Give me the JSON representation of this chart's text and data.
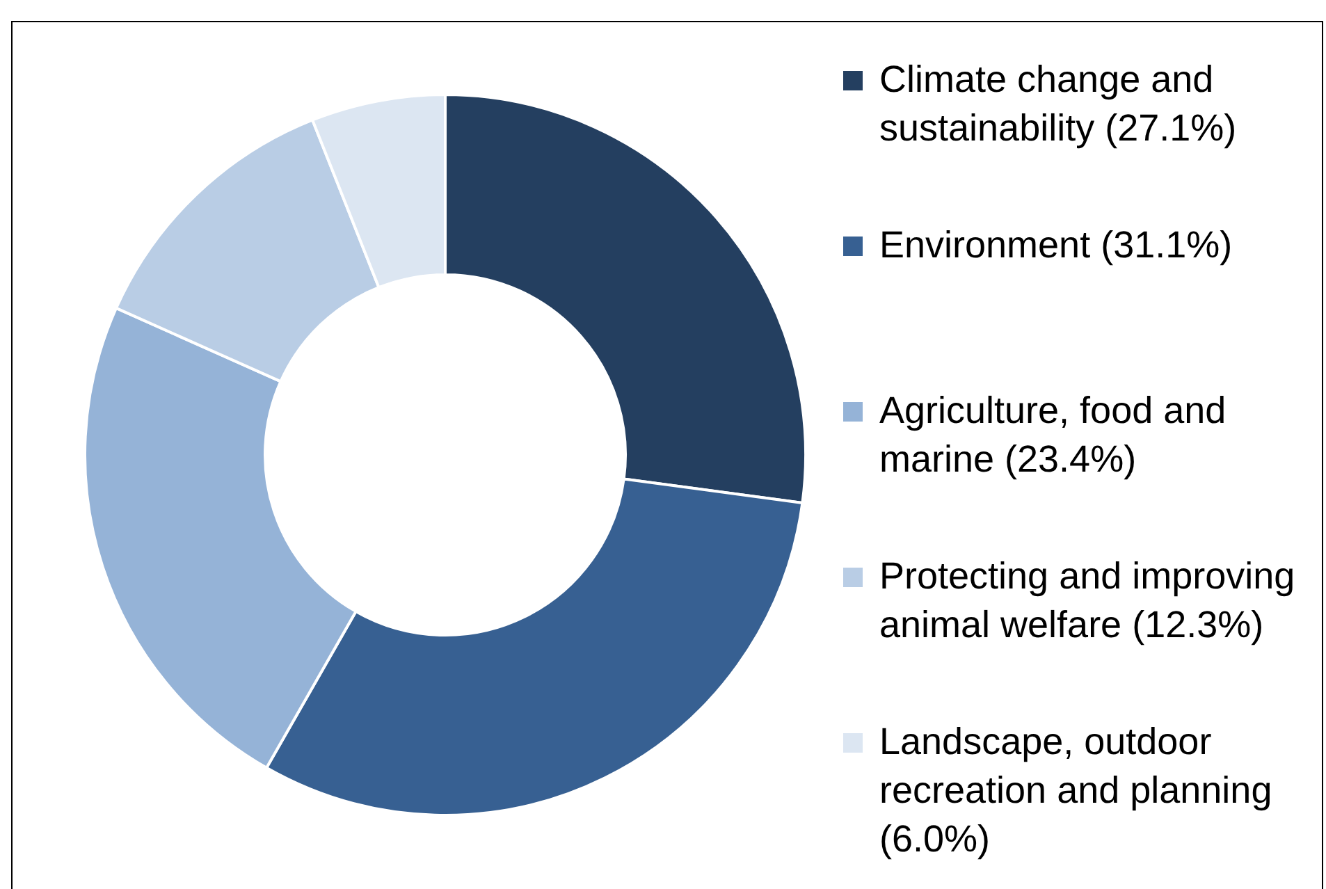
{
  "chart_data": {
    "type": "donut",
    "categories": [
      "Climate change and sustainability (27.1%)",
      "Environment (31.1%)",
      "Agriculture, food and marine (23.4%)",
      "Protecting and improving animal welfare (12.3%)",
      "Landscape, outdoor recreation and planning (6.0%)"
    ],
    "values": [
      27.1,
      31.1,
      23.4,
      12.3,
      6.0
    ],
    "colors": [
      "#243f60",
      "#376092",
      "#95b3d7",
      "#b9cde5",
      "#dce6f2"
    ],
    "legend": "right"
  }
}
